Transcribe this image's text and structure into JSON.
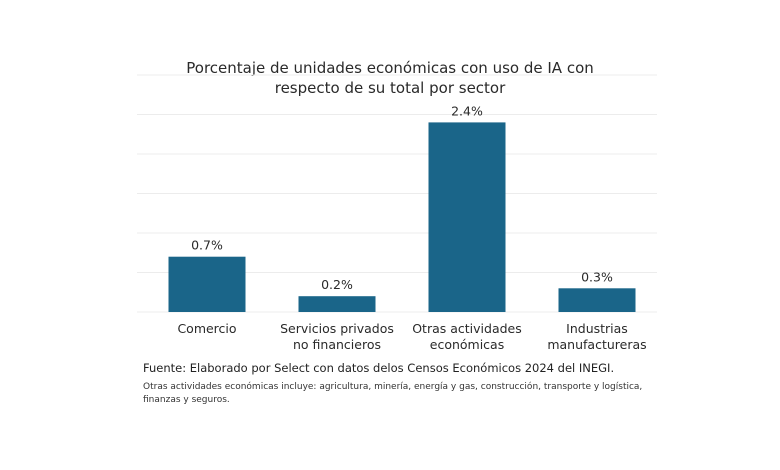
{
  "chart_data": {
    "type": "bar",
    "title": "Porcentaje de unidades económicas con uso de IA con respecto de su total por sector",
    "title_lines": [
      "Porcentaje de unidades económicas con uso de IA con",
      "respecto de su total por sector"
    ],
    "categories": [
      "Comercio",
      "Servicios privados no financieros",
      "Otras actividades económicas",
      "Industrias manufactureras"
    ],
    "category_lines": [
      [
        "Comercio"
      ],
      [
        "Servicios privados",
        "no financieros"
      ],
      [
        "Otras actividades",
        "económicas"
      ],
      [
        "Industrias",
        "manufactureras"
      ]
    ],
    "values": [
      0.7,
      0.2,
      2.4,
      0.3
    ],
    "data_labels": [
      "0.7%",
      "0.2%",
      "2.4%",
      "0.3%"
    ],
    "xlabel": "",
    "ylabel": "",
    "ylim": [
      0,
      3.0
    ],
    "grid_step": 0.5,
    "grid": true,
    "y_ticks_visible": false,
    "bar_color": "#1a6589",
    "grid_color": "#ececec"
  },
  "footer": {
    "source": "Fuente: Elaborado por Select con datos delos Censos Económicos 2024 del INEGI.",
    "note": "Otras actividades económicas incluye: agricultura, minería, energía y gas, construcción, transporte y logística, finanzas y seguros."
  }
}
